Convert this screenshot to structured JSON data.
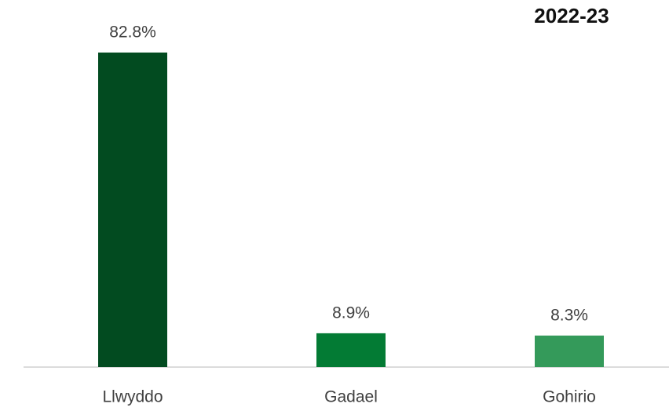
{
  "chart_data": {
    "type": "bar",
    "title": "2022-23",
    "categories": [
      "Llwyddo",
      "Gadael",
      "Gohirio"
    ],
    "values": [
      82.8,
      8.9,
      8.3
    ],
    "value_labels": [
      "82.8%",
      "8.9%",
      "8.3%"
    ],
    "colors": [
      "#024b20",
      "#037b34",
      "#349a5a"
    ]
  }
}
